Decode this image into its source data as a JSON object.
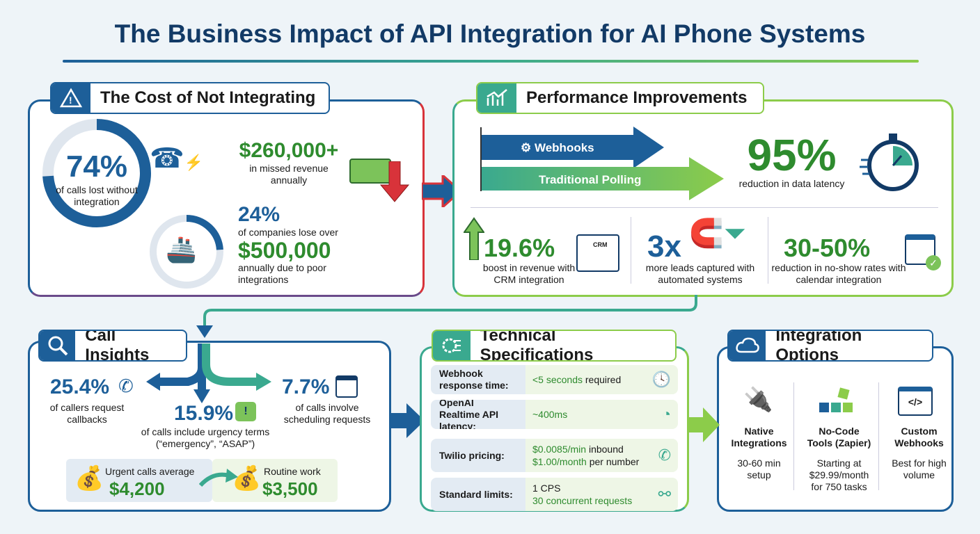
{
  "title": "The Business Impact of API Integration for AI Phone Systems",
  "colors": {
    "blue": "#1d5f99",
    "green": "#2e8b2e",
    "teal": "#3aa98f",
    "red": "#d8333a"
  },
  "cost": {
    "title": "The Cost of Not Integrating",
    "icon": "warning-icon",
    "calls_lost": {
      "value": "74%",
      "label": "of calls lost without integration",
      "percent": 74
    },
    "missed": {
      "value": "$260,000+",
      "label": "in missed revenue annually"
    },
    "companies": {
      "value": "24%",
      "label": "of companies lose over",
      "amount": "$500,000",
      "label2": "annually due to poor integrations",
      "percent": 24
    }
  },
  "performance": {
    "title": "Performance Improvements",
    "icon": "chart-icon",
    "webhooks": "Webhooks",
    "polling": "Traditional Polling",
    "latency": {
      "value": "95%",
      "label": "reduction in data latency"
    },
    "stats": [
      {
        "value": "19.6%",
        "label": "boost in revenue with CRM integration",
        "icon_text": "CRM"
      },
      {
        "value": "3x",
        "label": "more leads captured with automated systems"
      },
      {
        "value": "30-50%",
        "label": "reduction in no-show rates with calendar integration"
      }
    ]
  },
  "insights": {
    "title": "Call Insights",
    "callbacks": {
      "value": "25.4%",
      "label": "of callers request callbacks"
    },
    "urgency": {
      "value": "15.9%",
      "label": "of calls include urgency terms (“emergency”, “ASAP”)"
    },
    "scheduling": {
      "value": "7.7%",
      "label": "of calls involve scheduling requests"
    },
    "urgent": {
      "label": "Urgent calls average",
      "value": "$4,200"
    },
    "routine": {
      "label": "Routine work",
      "value": "$3,500"
    }
  },
  "specs": {
    "title": "Technical Specifications",
    "rows": [
      {
        "key": "Webhook response time:",
        "v1": "<5 seconds",
        "v1b": " required",
        "icon": "clock-icon"
      },
      {
        "key": "OpenAI Realtime API latency:",
        "v1": "~400ms",
        "icon": "gauge-icon"
      },
      {
        "key": "Twilio pricing:",
        "v1": "$0.0085/min",
        "v1b": " inbound",
        "v2": "$1.00/month",
        "v2b": " per number",
        "icon": "phone-dollar-icon"
      },
      {
        "key": "Standard limits:",
        "v0": "1 CPS",
        "v2": "30 concurrent requests",
        "icon": "network-icon"
      }
    ]
  },
  "options": {
    "title": "Integration Options",
    "items": [
      {
        "name": "Native Integrations",
        "desc": "30-60 min setup"
      },
      {
        "name": "No-Code Tools (Zapier)",
        "desc": "Starting at $29.99/month for 750 tasks"
      },
      {
        "name": "Custom Webhooks",
        "desc": "Best for high volume"
      }
    ]
  }
}
